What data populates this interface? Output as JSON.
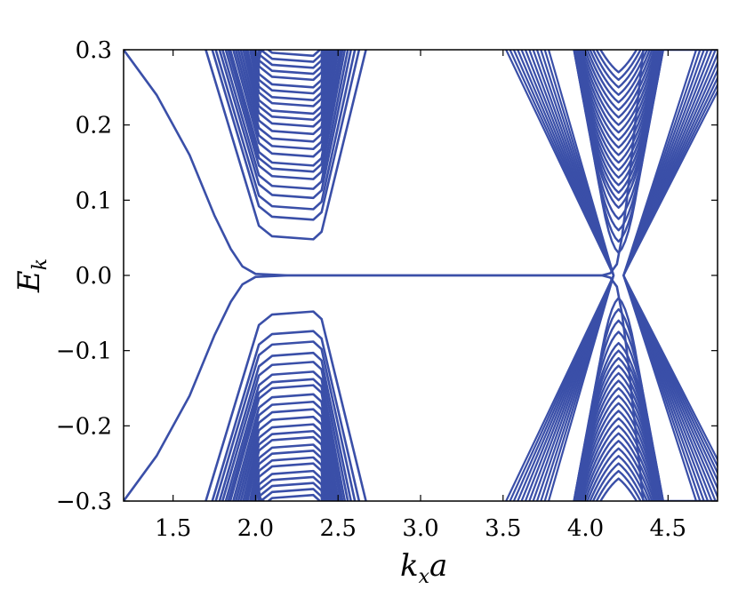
{
  "chart_data": {
    "type": "line",
    "title": "",
    "xlabel": "k",
    "xlabel_sub": "x",
    "xlabel_tail": "a",
    "ylabel": "E",
    "ylabel_sub": "k",
    "xlim": [
      1.2,
      4.8
    ],
    "ylim": [
      -0.3,
      0.3
    ],
    "grid": false,
    "legend": "none",
    "line_color": "#3a4fa8",
    "xticks": [
      {
        "value": 1.5,
        "label": "1.5"
      },
      {
        "value": 2.0,
        "label": "2.0"
      },
      {
        "value": 2.5,
        "label": "2.5"
      },
      {
        "value": 3.0,
        "label": "3.0"
      },
      {
        "value": 3.5,
        "label": "3.5"
      },
      {
        "value": 4.0,
        "label": "4.0"
      },
      {
        "value": 4.5,
        "label": "4.5"
      }
    ],
    "yticks": [
      {
        "value": 0.3,
        "label": "0.3"
      },
      {
        "value": 0.2,
        "label": "0.2"
      },
      {
        "value": 0.1,
        "label": "0.1"
      },
      {
        "value": 0.0,
        "label": "0.0"
      },
      {
        "value": -0.1,
        "label": "−0.1"
      },
      {
        "value": -0.2,
        "label": "−0.2"
      },
      {
        "value": -0.3,
        "label": "−0.3"
      }
    ],
    "edge_state": {
      "x": [
        1.2,
        1.4,
        1.6,
        1.75,
        1.85,
        1.92,
        2.0,
        2.2,
        3.0,
        4.0,
        4.1,
        4.15,
        4.19,
        4.22,
        4.25,
        4.35,
        4.5,
        4.8
      ],
      "y": [
        0.3,
        0.24,
        0.16,
        0.08,
        0.035,
        0.012,
        0.002,
        0.0,
        0.0,
        0.0,
        0.0,
        0.003,
        0.015,
        0.05,
        0.1,
        0.3,
        0.3,
        0.3
      ]
    },
    "left_subband_minima": [
      0.048,
      0.074,
      0.088,
      0.103,
      0.115,
      0.128,
      0.138,
      0.146,
      0.158,
      0.168,
      0.178,
      0.188,
      0.198,
      0.207,
      0.215,
      0.225,
      0.233,
      0.242,
      0.25,
      0.26,
      0.268,
      0.276,
      0.284,
      0.292
    ],
    "left_plateau_range": [
      2.1,
      2.35
    ],
    "right_cone_center": 4.2,
    "right_subband_minima": [
      0.0,
      0.03,
      0.045,
      0.06,
      0.075,
      0.09,
      0.1,
      0.11,
      0.12,
      0.13,
      0.14,
      0.15,
      0.16,
      0.17,
      0.18,
      0.19,
      0.2,
      0.21,
      0.22,
      0.23,
      0.24,
      0.25,
      0.26,
      0.27
    ]
  }
}
